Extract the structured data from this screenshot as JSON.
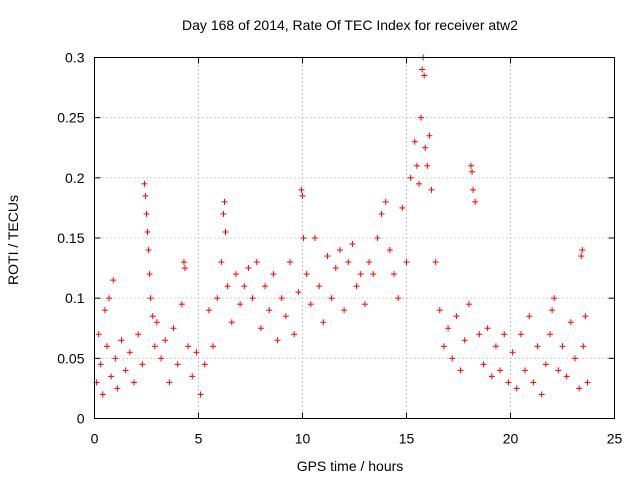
{
  "chart_data": {
    "type": "scatter",
    "title": "Day 168 of 2014, Rate Of TEC Index for receiver atw2",
    "xlabel": "GPS time / hours",
    "ylabel": "ROTI / TECUs",
    "xlim": [
      0,
      25
    ],
    "ylim": [
      0,
      0.3
    ],
    "x_ticks": [
      0,
      5,
      10,
      15,
      20,
      25
    ],
    "y_ticks": [
      0,
      0.05,
      0.1,
      0.15,
      0.2,
      0.25,
      0.3
    ],
    "x_tick_labels": [
      "0",
      "5",
      "10",
      "15",
      "20",
      "25"
    ],
    "y_tick_labels": [
      "0",
      "0.05",
      "0.1",
      "0.15",
      "0.2",
      "0.25",
      "0.3"
    ],
    "grid": true,
    "marker": "+",
    "color": "#ff0000",
    "series": [
      {
        "name": "ROTI",
        "points": [
          [
            0.1,
            0.03
          ],
          [
            0.2,
            0.07
          ],
          [
            0.3,
            0.045
          ],
          [
            0.4,
            0.02
          ],
          [
            0.5,
            0.09
          ],
          [
            0.6,
            0.06
          ],
          [
            0.7,
            0.1
          ],
          [
            0.8,
            0.035
          ],
          [
            0.9,
            0.115
          ],
          [
            1.0,
            0.05
          ],
          [
            1.1,
            0.025
          ],
          [
            1.3,
            0.065
          ],
          [
            1.5,
            0.04
          ],
          [
            1.7,
            0.055
          ],
          [
            1.9,
            0.03
          ],
          [
            2.1,
            0.07
          ],
          [
            2.3,
            0.045
          ],
          [
            2.4,
            0.195
          ],
          [
            2.45,
            0.185
          ],
          [
            2.5,
            0.17
          ],
          [
            2.55,
            0.155
          ],
          [
            2.6,
            0.14
          ],
          [
            2.65,
            0.12
          ],
          [
            2.7,
            0.1
          ],
          [
            2.8,
            0.085
          ],
          [
            2.9,
            0.06
          ],
          [
            3.0,
            0.08
          ],
          [
            3.2,
            0.05
          ],
          [
            3.4,
            0.065
          ],
          [
            3.6,
            0.03
          ],
          [
            3.8,
            0.075
          ],
          [
            4.0,
            0.045
          ],
          [
            4.2,
            0.095
          ],
          [
            4.3,
            0.13
          ],
          [
            4.35,
            0.125
          ],
          [
            4.5,
            0.06
          ],
          [
            4.7,
            0.035
          ],
          [
            4.9,
            0.055
          ],
          [
            5.1,
            0.02
          ],
          [
            5.3,
            0.045
          ],
          [
            5.5,
            0.09
          ],
          [
            5.7,
            0.06
          ],
          [
            5.9,
            0.1
          ],
          [
            6.1,
            0.13
          ],
          [
            6.2,
            0.17
          ],
          [
            6.25,
            0.18
          ],
          [
            6.3,
            0.155
          ],
          [
            6.4,
            0.11
          ],
          [
            6.6,
            0.08
          ],
          [
            6.8,
            0.12
          ],
          [
            7.0,
            0.095
          ],
          [
            7.2,
            0.11
          ],
          [
            7.4,
            0.125
          ],
          [
            7.6,
            0.1
          ],
          [
            7.8,
            0.13
          ],
          [
            8.0,
            0.075
          ],
          [
            8.2,
            0.11
          ],
          [
            8.4,
            0.09
          ],
          [
            8.6,
            0.12
          ],
          [
            8.8,
            0.065
          ],
          [
            9.0,
            0.1
          ],
          [
            9.2,
            0.085
          ],
          [
            9.4,
            0.13
          ],
          [
            9.6,
            0.07
          ],
          [
            9.8,
            0.105
          ],
          [
            9.95,
            0.19
          ],
          [
            10.0,
            0.185
          ],
          [
            10.05,
            0.15
          ],
          [
            10.2,
            0.12
          ],
          [
            10.4,
            0.095
          ],
          [
            10.6,
            0.15
          ],
          [
            10.8,
            0.11
          ],
          [
            11.0,
            0.08
          ],
          [
            11.2,
            0.135
          ],
          [
            11.4,
            0.1
          ],
          [
            11.6,
            0.125
          ],
          [
            11.8,
            0.14
          ],
          [
            12.0,
            0.09
          ],
          [
            12.2,
            0.13
          ],
          [
            12.4,
            0.145
          ],
          [
            12.6,
            0.11
          ],
          [
            12.8,
            0.12
          ],
          [
            13.0,
            0.095
          ],
          [
            13.2,
            0.13
          ],
          [
            13.4,
            0.12
          ],
          [
            13.6,
            0.15
          ],
          [
            13.8,
            0.17
          ],
          [
            14.0,
            0.18
          ],
          [
            14.2,
            0.14
          ],
          [
            14.4,
            0.12
          ],
          [
            14.6,
            0.1
          ],
          [
            14.8,
            0.175
          ],
          [
            15.0,
            0.13
          ],
          [
            15.2,
            0.2
          ],
          [
            15.4,
            0.23
          ],
          [
            15.5,
            0.21
          ],
          [
            15.6,
            0.195
          ],
          [
            15.7,
            0.25
          ],
          [
            15.75,
            0.29
          ],
          [
            15.8,
            0.3
          ],
          [
            15.85,
            0.285
          ],
          [
            15.9,
            0.225
          ],
          [
            16.0,
            0.21
          ],
          [
            16.1,
            0.235
          ],
          [
            16.2,
            0.19
          ],
          [
            16.4,
            0.13
          ],
          [
            16.6,
            0.09
          ],
          [
            16.8,
            0.06
          ],
          [
            17.0,
            0.075
          ],
          [
            17.2,
            0.05
          ],
          [
            17.4,
            0.085
          ],
          [
            17.6,
            0.04
          ],
          [
            17.8,
            0.065
          ],
          [
            18.0,
            0.095
          ],
          [
            18.1,
            0.21
          ],
          [
            18.15,
            0.205
          ],
          [
            18.2,
            0.19
          ],
          [
            18.3,
            0.18
          ],
          [
            18.5,
            0.07
          ],
          [
            18.7,
            0.045
          ],
          [
            18.9,
            0.075
          ],
          [
            19.1,
            0.035
          ],
          [
            19.3,
            0.06
          ],
          [
            19.5,
            0.04
          ],
          [
            19.7,
            0.07
          ],
          [
            19.9,
            0.03
          ],
          [
            20.1,
            0.055
          ],
          [
            20.3,
            0.025
          ],
          [
            20.5,
            0.07
          ],
          [
            20.7,
            0.04
          ],
          [
            20.9,
            0.085
          ],
          [
            21.1,
            0.03
          ],
          [
            21.3,
            0.06
          ],
          [
            21.5,
            0.02
          ],
          [
            21.7,
            0.045
          ],
          [
            21.9,
            0.07
          ],
          [
            22.0,
            0.09
          ],
          [
            22.1,
            0.1
          ],
          [
            22.3,
            0.04
          ],
          [
            22.5,
            0.06
          ],
          [
            22.7,
            0.035
          ],
          [
            22.9,
            0.08
          ],
          [
            23.1,
            0.05
          ],
          [
            23.3,
            0.025
          ],
          [
            23.4,
            0.135
          ],
          [
            23.45,
            0.14
          ],
          [
            23.5,
            0.06
          ],
          [
            23.6,
            0.085
          ],
          [
            23.7,
            0.03
          ]
        ]
      }
    ]
  }
}
